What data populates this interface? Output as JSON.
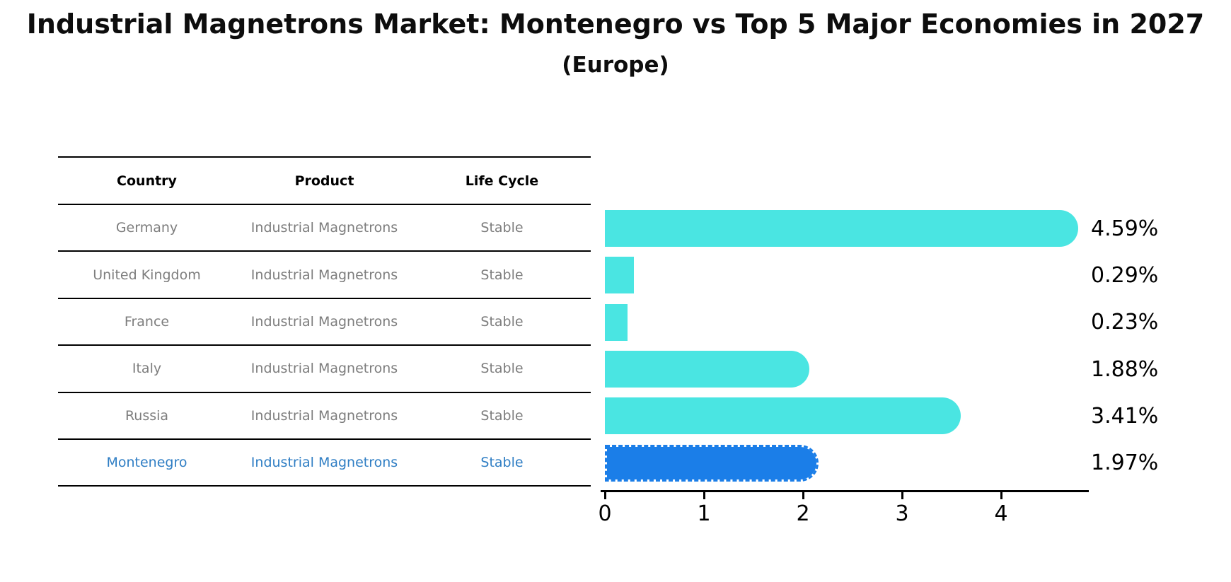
{
  "header": {
    "title": "Industrial Magnetrons Market: Montenegro vs Top 5 Major Economies in 2027",
    "subtitle": "(Europe)"
  },
  "table": {
    "columns": [
      "Country",
      "Product",
      "Life Cycle"
    ],
    "rows": [
      {
        "country": "Germany",
        "product": "Industrial Magnetrons",
        "life_cycle": "Stable",
        "highlight": false
      },
      {
        "country": "United Kingdom",
        "product": "Industrial Magnetrons",
        "life_cycle": "Stable",
        "highlight": false
      },
      {
        "country": "France",
        "product": "Industrial Magnetrons",
        "life_cycle": "Stable",
        "highlight": false
      },
      {
        "country": "Italy",
        "product": "Industrial Magnetrons",
        "life_cycle": "Stable",
        "highlight": false
      },
      {
        "country": "Russia",
        "product": "Industrial Magnetrons",
        "life_cycle": "Stable",
        "highlight": false
      },
      {
        "country": "Montenegro",
        "product": "Industrial Magnetrons",
        "life_cycle": "Stable",
        "highlight": true
      }
    ]
  },
  "chart_data": {
    "type": "bar",
    "orientation": "horizontal",
    "title": "Industrial Magnetrons Market: Montenegro vs Top 5 Major Economies in 2027 (Europe)",
    "categories": [
      "Germany",
      "United Kingdom",
      "France",
      "Italy",
      "Russia",
      "Montenegro"
    ],
    "values": [
      4.59,
      0.29,
      0.23,
      1.88,
      3.41,
      1.97
    ],
    "value_labels": [
      "4.59%",
      "0.29%",
      "0.23%",
      "1.88%",
      "3.41%",
      "1.97%"
    ],
    "x_ticks": [
      0,
      1,
      2,
      3,
      4
    ],
    "xlim": [
      0,
      4.9
    ],
    "grid": false,
    "legend": null,
    "bar_color": "#4ae5e2",
    "highlight_color": "#1b7ee8",
    "highlight_index": 5
  },
  "colors": {
    "highlight_text": "#2f7ec4",
    "table_text": "#7d7d7d",
    "axis": "#000000"
  }
}
